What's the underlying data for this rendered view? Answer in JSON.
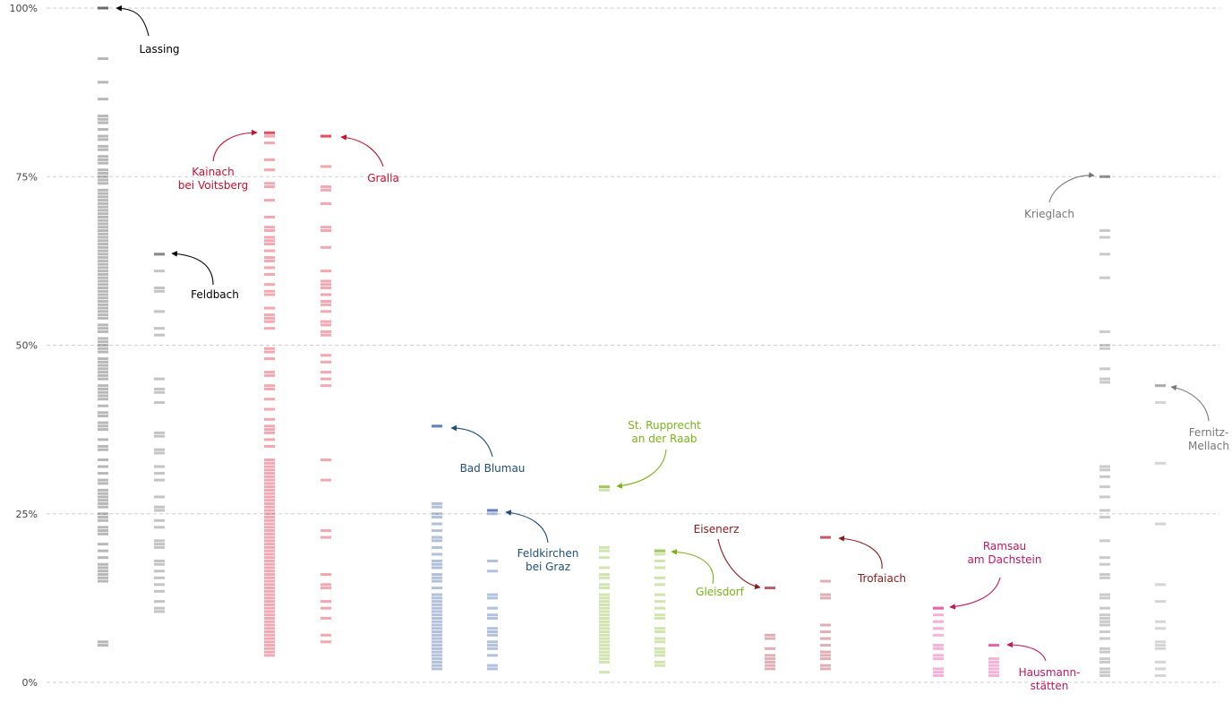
{
  "chart_data": {
    "type": "strip",
    "ylim": [
      0,
      100
    ],
    "y_ticks": [
      {
        "value": 0,
        "label": "0%"
      },
      {
        "value": 25,
        "label": "25%"
      },
      {
        "value": 50,
        "label": "50%"
      },
      {
        "value": 75,
        "label": "75%"
      },
      {
        "value": 100,
        "label": "100%"
      }
    ],
    "grid": true,
    "columns": [
      {
        "name": "Lassing",
        "label_lines": [
          "Lassing"
        ],
        "color": "#333333",
        "label_color": "#000000",
        "highlight": 100,
        "values": [
          100,
          92.5,
          89,
          86.5,
          84,
          83.5,
          83,
          82,
          81,
          80.5,
          79.5,
          79,
          78,
          77.5,
          77,
          76,
          75.5,
          75,
          74.5,
          74,
          73,
          72.5,
          72,
          71.5,
          71,
          70.5,
          70,
          69.5,
          69,
          68.5,
          68,
          67.5,
          67,
          66.5,
          66,
          65.5,
          65,
          64.5,
          64,
          63.5,
          63,
          62.5,
          62,
          61.5,
          61,
          60.5,
          60,
          59.5,
          59,
          58.5,
          58,
          57.5,
          57,
          56.5,
          56,
          55.5,
          55,
          54.5,
          54,
          53,
          52.5,
          52,
          51,
          50.5,
          50,
          49.5,
          49,
          48,
          47.5,
          47,
          46.5,
          46,
          45.5,
          45,
          44,
          43.5,
          43,
          42.5,
          42,
          41,
          40,
          39.5,
          38.5,
          38,
          37.5,
          36,
          35,
          34.5,
          33,
          32,
          31,
          30,
          29.5,
          28.5,
          28,
          27.5,
          27,
          26.5,
          26,
          25,
          24.5,
          24,
          23,
          22.5,
          22,
          20.5,
          19.5,
          18.5,
          17.5,
          17,
          16.5,
          16,
          15.5,
          15,
          6,
          5.5
        ]
      },
      {
        "name": "Feldbach",
        "label_lines": [
          "Feldbach"
        ],
        "color": "#555555",
        "label_color": "#000000",
        "highlight": 63.5,
        "values": [
          63.5,
          61,
          58.5,
          58,
          55,
          52.5,
          51.5,
          45,
          43.5,
          43,
          41.5,
          37,
          36.5,
          34.5,
          34,
          32,
          31,
          30,
          27.5,
          26,
          25.5,
          24,
          23,
          21,
          20.5,
          20,
          18,
          17.5,
          16.5,
          15.5,
          14.5,
          13.5,
          12,
          11,
          10.5
        ]
      },
      {
        "name": "Kainach bei Voitsberg",
        "label_lines": [
          "Kainach",
          "bei Voitsberg"
        ],
        "color": "#e2001a",
        "label_color": "#c8102e",
        "highlight": 81.5,
        "values": [
          81.5,
          81,
          80,
          77.5,
          76,
          74,
          73.5,
          71.5,
          69,
          67.5,
          67,
          66,
          65.5,
          65,
          64,
          63,
          62.5,
          61.5,
          60.5,
          59,
          58,
          57.5,
          55.5,
          54.5,
          54,
          53.5,
          52.5,
          49.5,
          49,
          48,
          46,
          45.5,
          44,
          43.5,
          42,
          40.5,
          39,
          38,
          37.5,
          37,
          36,
          35,
          33,
          32.5,
          32,
          31.5,
          31,
          30.5,
          30,
          29.5,
          29,
          28.5,
          28,
          27.5,
          27,
          26.5,
          26,
          25.5,
          25,
          24.5,
          24,
          23.5,
          23,
          22.5,
          22,
          21.5,
          21,
          20.5,
          20,
          19.5,
          19,
          18.5,
          18,
          17.5,
          17,
          16.5,
          16,
          15.5,
          15,
          14.5,
          14,
          13.5,
          13,
          12.5,
          12,
          11.5,
          11,
          10.5,
          10,
          9.5,
          9,
          8.5,
          8,
          7.5,
          7,
          6.5,
          6,
          5.5,
          5,
          4.5,
          4
        ]
      },
      {
        "name": "Gralla",
        "label_lines": [
          "Gralla"
        ],
        "color": "#e2001a",
        "label_color": "#c8102e",
        "highlight": 81,
        "values": [
          81,
          76.5,
          73.5,
          73,
          71,
          67.5,
          67,
          64.5,
          61,
          59.5,
          59,
          58.5,
          57.5,
          56.5,
          56,
          55,
          53.5,
          53,
          52,
          51.5,
          48.5,
          47.5,
          46,
          45,
          44,
          33,
          30,
          22.5,
          21.5,
          16,
          14.5,
          14,
          12,
          11,
          9.5,
          7,
          6
        ]
      },
      {
        "name": "Bad Blumau",
        "label_lines": [
          "Bad Blumau"
        ],
        "color": "#1f4e9c",
        "label_color": "#1f4e79",
        "highlight": 38,
        "values": [
          38,
          26.5,
          26,
          25,
          24.5,
          23.5,
          22.5,
          21.5,
          21,
          20,
          19,
          18,
          17.5,
          17,
          16,
          15.5,
          15,
          14,
          13,
          12.5,
          12,
          11.5,
          11,
          10.5,
          10,
          9.5,
          9,
          8.5,
          8,
          7.5,
          7,
          6.5,
          6,
          5.5,
          5,
          4.5,
          4,
          3.5,
          3,
          2.5,
          2
        ]
      },
      {
        "name": "Feldkirchen bei Graz",
        "label_lines": [
          "Feldkirchen",
          "bei Graz"
        ],
        "color": "#1f4e9c",
        "label_color": "#1f4e79",
        "highlight": 25.5,
        "values": [
          25.5,
          25,
          18,
          16.5,
          13,
          12.5,
          11,
          10,
          9.5,
          8,
          7.5,
          7,
          6,
          5.5,
          5,
          4,
          2.5,
          2
        ]
      },
      {
        "name": "St. Rupprecht an der Raab",
        "label_lines": [
          "St. Rupprecht",
          "an der Raab"
        ],
        "color": "#7ab317",
        "label_color": "#7ab317",
        "highlight": 29,
        "values": [
          29,
          28.5,
          20,
          19.5,
          18.5,
          17,
          16,
          15.5,
          14.5,
          14,
          13,
          12.5,
          12,
          11.5,
          11,
          10.5,
          10,
          9.5,
          9,
          8.5,
          8,
          7.5,
          7,
          6.5,
          6,
          5.5,
          5,
          4.5,
          4,
          3.5,
          3,
          1.5
        ]
      },
      {
        "name": "Gleisdorf",
        "label_lines": [
          "Gleisdorf"
        ],
        "color": "#7ab317",
        "label_color": "#7ab317",
        "highlight": 19.5,
        "values": [
          19.5,
          19,
          18,
          17,
          15.5,
          14.5,
          13,
          12,
          11,
          10,
          9.5,
          8,
          7.5,
          6.5,
          6,
          5,
          4.5,
          4,
          3,
          2.5
        ]
      },
      {
        "name": "Eisenerz",
        "label_lines": [
          "Eisenerz"
        ],
        "color": "#a6192e",
        "label_color": "#8b1a1a",
        "highlight": 14,
        "values": [
          14,
          7,
          6.5,
          5,
          4,
          3.5,
          3,
          2.5,
          2
        ]
      },
      {
        "name": "Trofaiach",
        "label_lines": [
          "Trofaiach"
        ],
        "color": "#a6192e",
        "label_color": "#8b1a1a",
        "highlight": 21.5,
        "values": [
          21.5,
          15,
          13,
          12.5,
          8.5,
          7.5,
          6.5,
          5.5,
          4.5,
          4,
          3.5,
          2.5,
          2
        ]
      },
      {
        "name": "Ramsau am Dachstein",
        "label_lines": [
          "Ramsau",
          "am Dachstein"
        ],
        "color": "#e0218a",
        "label_color": "#c2185b",
        "highlight": 11,
        "values": [
          11,
          10,
          9,
          8,
          7,
          5.5,
          5,
          4,
          3.5,
          2,
          1.5,
          1
        ]
      },
      {
        "name": "Hausmannstätten",
        "label_lines": [
          "Hausmann-",
          "stätten"
        ],
        "color": "#e0218a",
        "label_color": "#c2185b",
        "highlight": 5.5,
        "values": [
          5.5,
          3.5,
          3,
          2.5,
          2,
          1.5,
          1
        ]
      },
      {
        "name": "Krieglach",
        "label_lines": [
          "Krieglach"
        ],
        "color": "#666666",
        "label_color": "#777777",
        "highlight": 75,
        "values": [
          75,
          67,
          66,
          63.5,
          60,
          52,
          50,
          49.5,
          46.5,
          45,
          44.5,
          32,
          31.5,
          30.5,
          29,
          27.5,
          25.5,
          24.5,
          21,
          18.5,
          17.5,
          16,
          15.5,
          13,
          12.5,
          11,
          10,
          9.5,
          9,
          8.5,
          7.5,
          6.5,
          5,
          4.5,
          3.5,
          3,
          2,
          1.5,
          1
        ]
      },
      {
        "name": "Fernitz-Mellach",
        "label_lines": [
          "Fernitz-",
          "Mellach"
        ],
        "color": "#888888",
        "label_color": "#777777",
        "highlight": 44,
        "values": [
          44,
          41.5,
          32.5,
          23.5,
          14.5,
          12,
          9,
          8,
          6,
          5.5,
          5,
          3,
          2,
          1
        ]
      }
    ]
  }
}
